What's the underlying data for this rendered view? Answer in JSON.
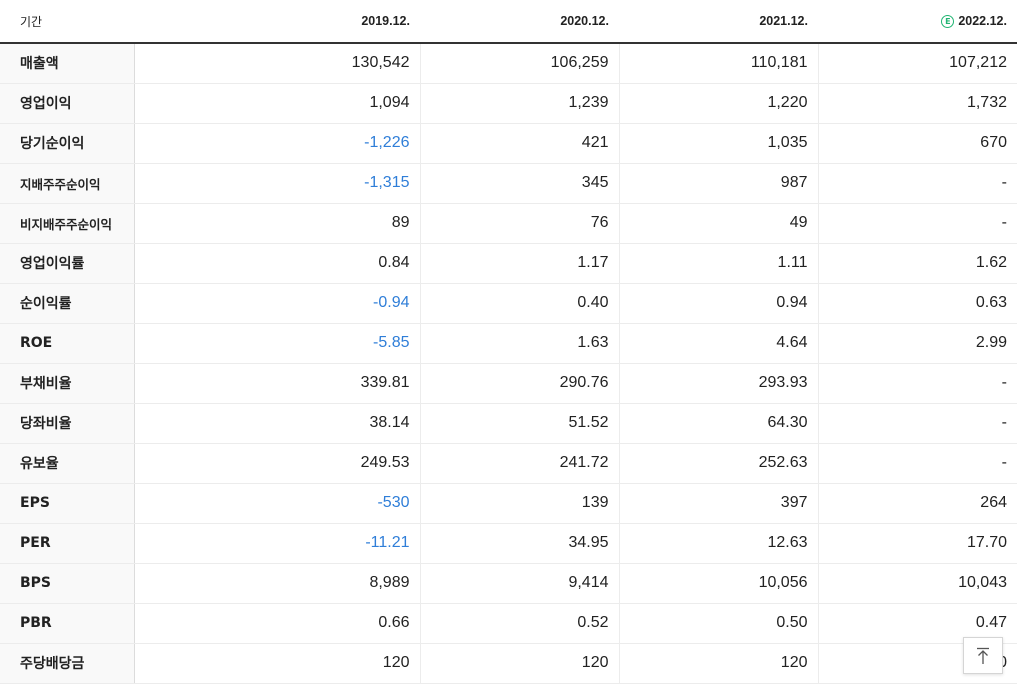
{
  "header": {
    "label": "기간",
    "periods": [
      "2019.12.",
      "2020.12.",
      "2021.12.",
      "2022.12."
    ],
    "estimate_icon_text": "E",
    "estimate_icon_color": "#22b573"
  },
  "rows": [
    {
      "label": "매출액",
      "values": [
        "130,542",
        "106,259",
        "110,181",
        "107,212"
      ]
    },
    {
      "label": "영업이익",
      "values": [
        "1,094",
        "1,239",
        "1,220",
        "1,732"
      ]
    },
    {
      "label": "당기순이익",
      "values": [
        "-1,226",
        "421",
        "1,035",
        "670"
      ]
    },
    {
      "label": "지배주주순이익",
      "values": [
        "-1,315",
        "345",
        "987",
        "-"
      ]
    },
    {
      "label": "비지배주주순이익",
      "values": [
        "89",
        "76",
        "49",
        "-"
      ]
    },
    {
      "label": "영업이익률",
      "values": [
        "0.84",
        "1.17",
        "1.11",
        "1.62"
      ]
    },
    {
      "label": "순이익률",
      "values": [
        "-0.94",
        "0.40",
        "0.94",
        "0.63"
      ]
    },
    {
      "label": "ROE",
      "values": [
        "-5.85",
        "1.63",
        "4.64",
        "2.99"
      ]
    },
    {
      "label": "부채비율",
      "values": [
        "339.81",
        "290.76",
        "293.93",
        "-"
      ]
    },
    {
      "label": "당좌비율",
      "values": [
        "38.14",
        "51.52",
        "64.30",
        "-"
      ]
    },
    {
      "label": "유보율",
      "values": [
        "249.53",
        "241.72",
        "252.63",
        "-"
      ]
    },
    {
      "label": "EPS",
      "values": [
        "-530",
        "139",
        "397",
        "264"
      ]
    },
    {
      "label": "PER",
      "values": [
        "-11.21",
        "34.95",
        "12.63",
        "17.70"
      ]
    },
    {
      "label": "BPS",
      "values": [
        "8,989",
        "9,414",
        "10,056",
        "10,043"
      ]
    },
    {
      "label": "PBR",
      "values": [
        "0.66",
        "0.52",
        "0.50",
        "0.47"
      ]
    },
    {
      "label": "주당배당금",
      "values": [
        "120",
        "120",
        "120",
        "0"
      ]
    }
  ],
  "colors": {
    "negative": "#2f7ed8",
    "header_rule": "#333333",
    "label_bg": "#f9f9f9"
  },
  "icons": {
    "scroll_top": "arrow-up-to-top-icon"
  }
}
